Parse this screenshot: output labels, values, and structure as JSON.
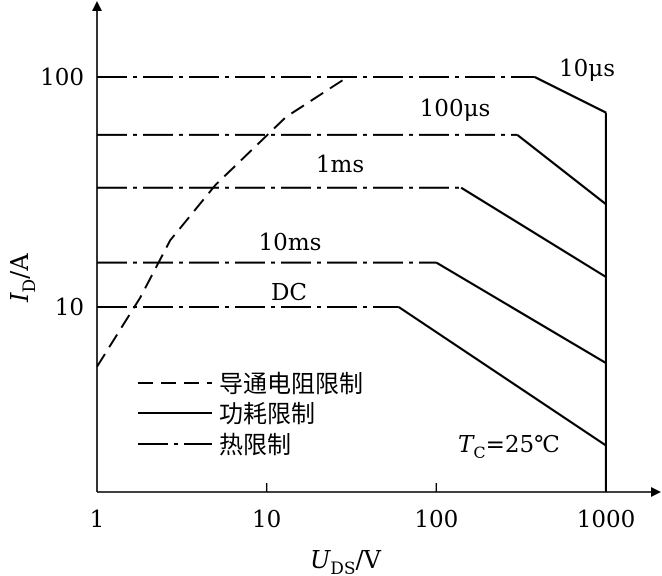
{
  "chart_data": {
    "type": "line",
    "title": "",
    "xlabel": {
      "main": "U",
      "sub": "DS",
      "unit": "/V"
    },
    "ylabel": {
      "main": "I",
      "sub": "D",
      "unit": "/A"
    },
    "xscale": "log",
    "yscale": "log",
    "xlim": [
      1,
      1000
    ],
    "ylim": [
      3.5,
      300
    ],
    "xticks": [
      1,
      10,
      100,
      1000
    ],
    "xtick_labels": [
      "1",
      "10",
      "100",
      "1000"
    ],
    "yticks": [
      10,
      100
    ],
    "ytick_labels": [
      "10",
      "100"
    ],
    "grid": false,
    "annotation": {
      "main": "T",
      "sub": "C",
      "value": "=25℃"
    },
    "series": [
      {
        "name": "10μs",
        "thermal": [
          [
            1,
            100
          ],
          [
            30,
            100
          ],
          [
            380,
            100
          ]
        ],
        "power": [
          [
            380,
            100
          ],
          [
            1000,
            70
          ]
        ],
        "vertical": [
          [
            1000,
            70
          ],
          [
            1000,
            3.5
          ]
        ]
      },
      {
        "name": "100μs",
        "thermal": [
          [
            1,
            56
          ],
          [
            300,
            56
          ]
        ],
        "power": [
          [
            300,
            56
          ],
          [
            1000,
            28
          ]
        ]
      },
      {
        "name": "1ms",
        "thermal": [
          [
            1,
            33
          ],
          [
            140,
            33
          ]
        ],
        "power": [
          [
            140,
            33
          ],
          [
            1000,
            13.5
          ]
        ]
      },
      {
        "name": "10ms",
        "thermal": [
          [
            1,
            15.6
          ],
          [
            100,
            15.6
          ]
        ],
        "power": [
          [
            100,
            15.6
          ],
          [
            1000,
            5.7
          ]
        ]
      },
      {
        "name": "DC",
        "thermal": [
          [
            1,
            10
          ],
          [
            60,
            10
          ]
        ],
        "power": [
          [
            60,
            10
          ],
          [
            1000,
            2.5
          ]
        ]
      }
    ],
    "rds_limit": [
      [
        1,
        5.5
      ],
      [
        1.8,
        11
      ],
      [
        2.7,
        19.5
      ],
      [
        5,
        34
      ],
      [
        13,
        67
      ],
      [
        30,
        100
      ]
    ],
    "legend": [
      {
        "style": "dashed",
        "label": "导通电阻限制"
      },
      {
        "style": "solid",
        "label": "功耗限制"
      },
      {
        "style": "dashdot",
        "label": "热限制"
      }
    ],
    "legend_position": "bottom-left"
  }
}
